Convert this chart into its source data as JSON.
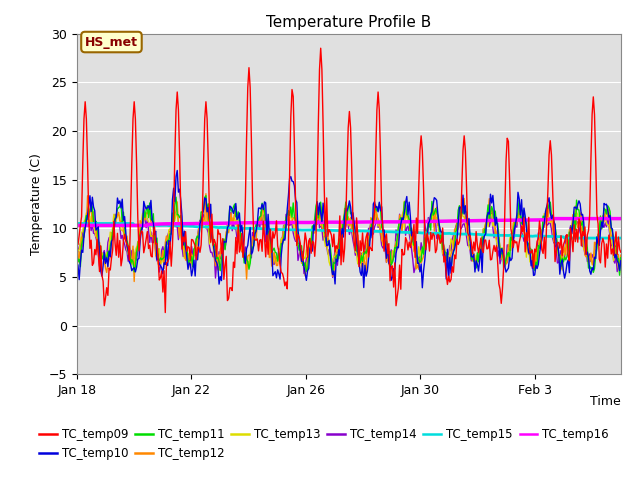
{
  "title": "Temperature Profile B",
  "xlabel": "Time",
  "ylabel": "Temperature (C)",
  "ylim": [
    -5,
    30
  ],
  "bg_color": "#e0e0e0",
  "fig_color": "#ffffff",
  "annotation_text": "HS_met",
  "series_colors": {
    "TC_temp09": "#ff0000",
    "TC_temp10": "#0000dd",
    "TC_temp11": "#00dd00",
    "TC_temp12": "#ff8800",
    "TC_temp13": "#dddd00",
    "TC_temp14": "#8800cc",
    "TC_temp15": "#00dddd",
    "TC_temp16": "#ff00ff"
  },
  "series_linewidths": {
    "TC_temp09": 1.0,
    "TC_temp10": 1.0,
    "TC_temp11": 1.0,
    "TC_temp12": 1.0,
    "TC_temp13": 1.0,
    "TC_temp14": 1.0,
    "TC_temp15": 2.0,
    "TC_temp16": 2.5
  },
  "xtick_labels": [
    "Jan 18",
    "Jan 22",
    "Jan 26",
    "Jan 30",
    "Feb 3"
  ],
  "xtick_positions": [
    0,
    4,
    8,
    12,
    16
  ],
  "ytick_vals": [
    -5,
    0,
    5,
    10,
    15,
    20,
    25,
    30
  ],
  "legend_order": [
    "TC_temp09",
    "TC_temp10",
    "TC_temp11",
    "TC_temp12",
    "TC_temp13",
    "TC_temp14",
    "TC_temp15",
    "TC_temp16"
  ]
}
